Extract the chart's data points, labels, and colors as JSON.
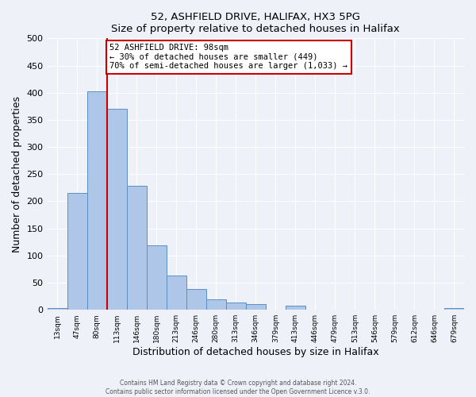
{
  "title": "52, ASHFIELD DRIVE, HALIFAX, HX3 5PG",
  "subtitle": "Size of property relative to detached houses in Halifax",
  "xlabel": "Distribution of detached houses by size in Halifax",
  "ylabel": "Number of detached properties",
  "bin_labels": [
    "13sqm",
    "47sqm",
    "80sqm",
    "113sqm",
    "146sqm",
    "180sqm",
    "213sqm",
    "246sqm",
    "280sqm",
    "313sqm",
    "346sqm",
    "379sqm",
    "413sqm",
    "446sqm",
    "479sqm",
    "513sqm",
    "546sqm",
    "579sqm",
    "612sqm",
    "646sqm",
    "679sqm"
  ],
  "bar_heights": [
    3,
    215,
    403,
    370,
    228,
    119,
    63,
    39,
    20,
    14,
    10,
    1,
    7,
    1,
    1,
    1,
    1,
    0,
    0,
    0,
    3
  ],
  "bar_color": "#aec6e8",
  "bar_edge_color": "#5a8fc2",
  "vline_x": 2.5,
  "vline_color": "#cc0000",
  "annotation_text": "52 ASHFIELD DRIVE: 98sqm\n← 30% of detached houses are smaller (449)\n70% of semi-detached houses are larger (1,033) →",
  "annotation_box_color": "#ffffff",
  "annotation_box_edge": "#cc0000",
  "ylim": [
    0,
    500
  ],
  "yticks": [
    0,
    50,
    100,
    150,
    200,
    250,
    300,
    350,
    400,
    450,
    500
  ],
  "footer1": "Contains HM Land Registry data © Crown copyright and database right 2024.",
  "footer2": "Contains public sector information licensed under the Open Government Licence v.3.0.",
  "background_color": "#eef2f8",
  "plot_background": "#eef2f8",
  "grid_color": "#ffffff"
}
